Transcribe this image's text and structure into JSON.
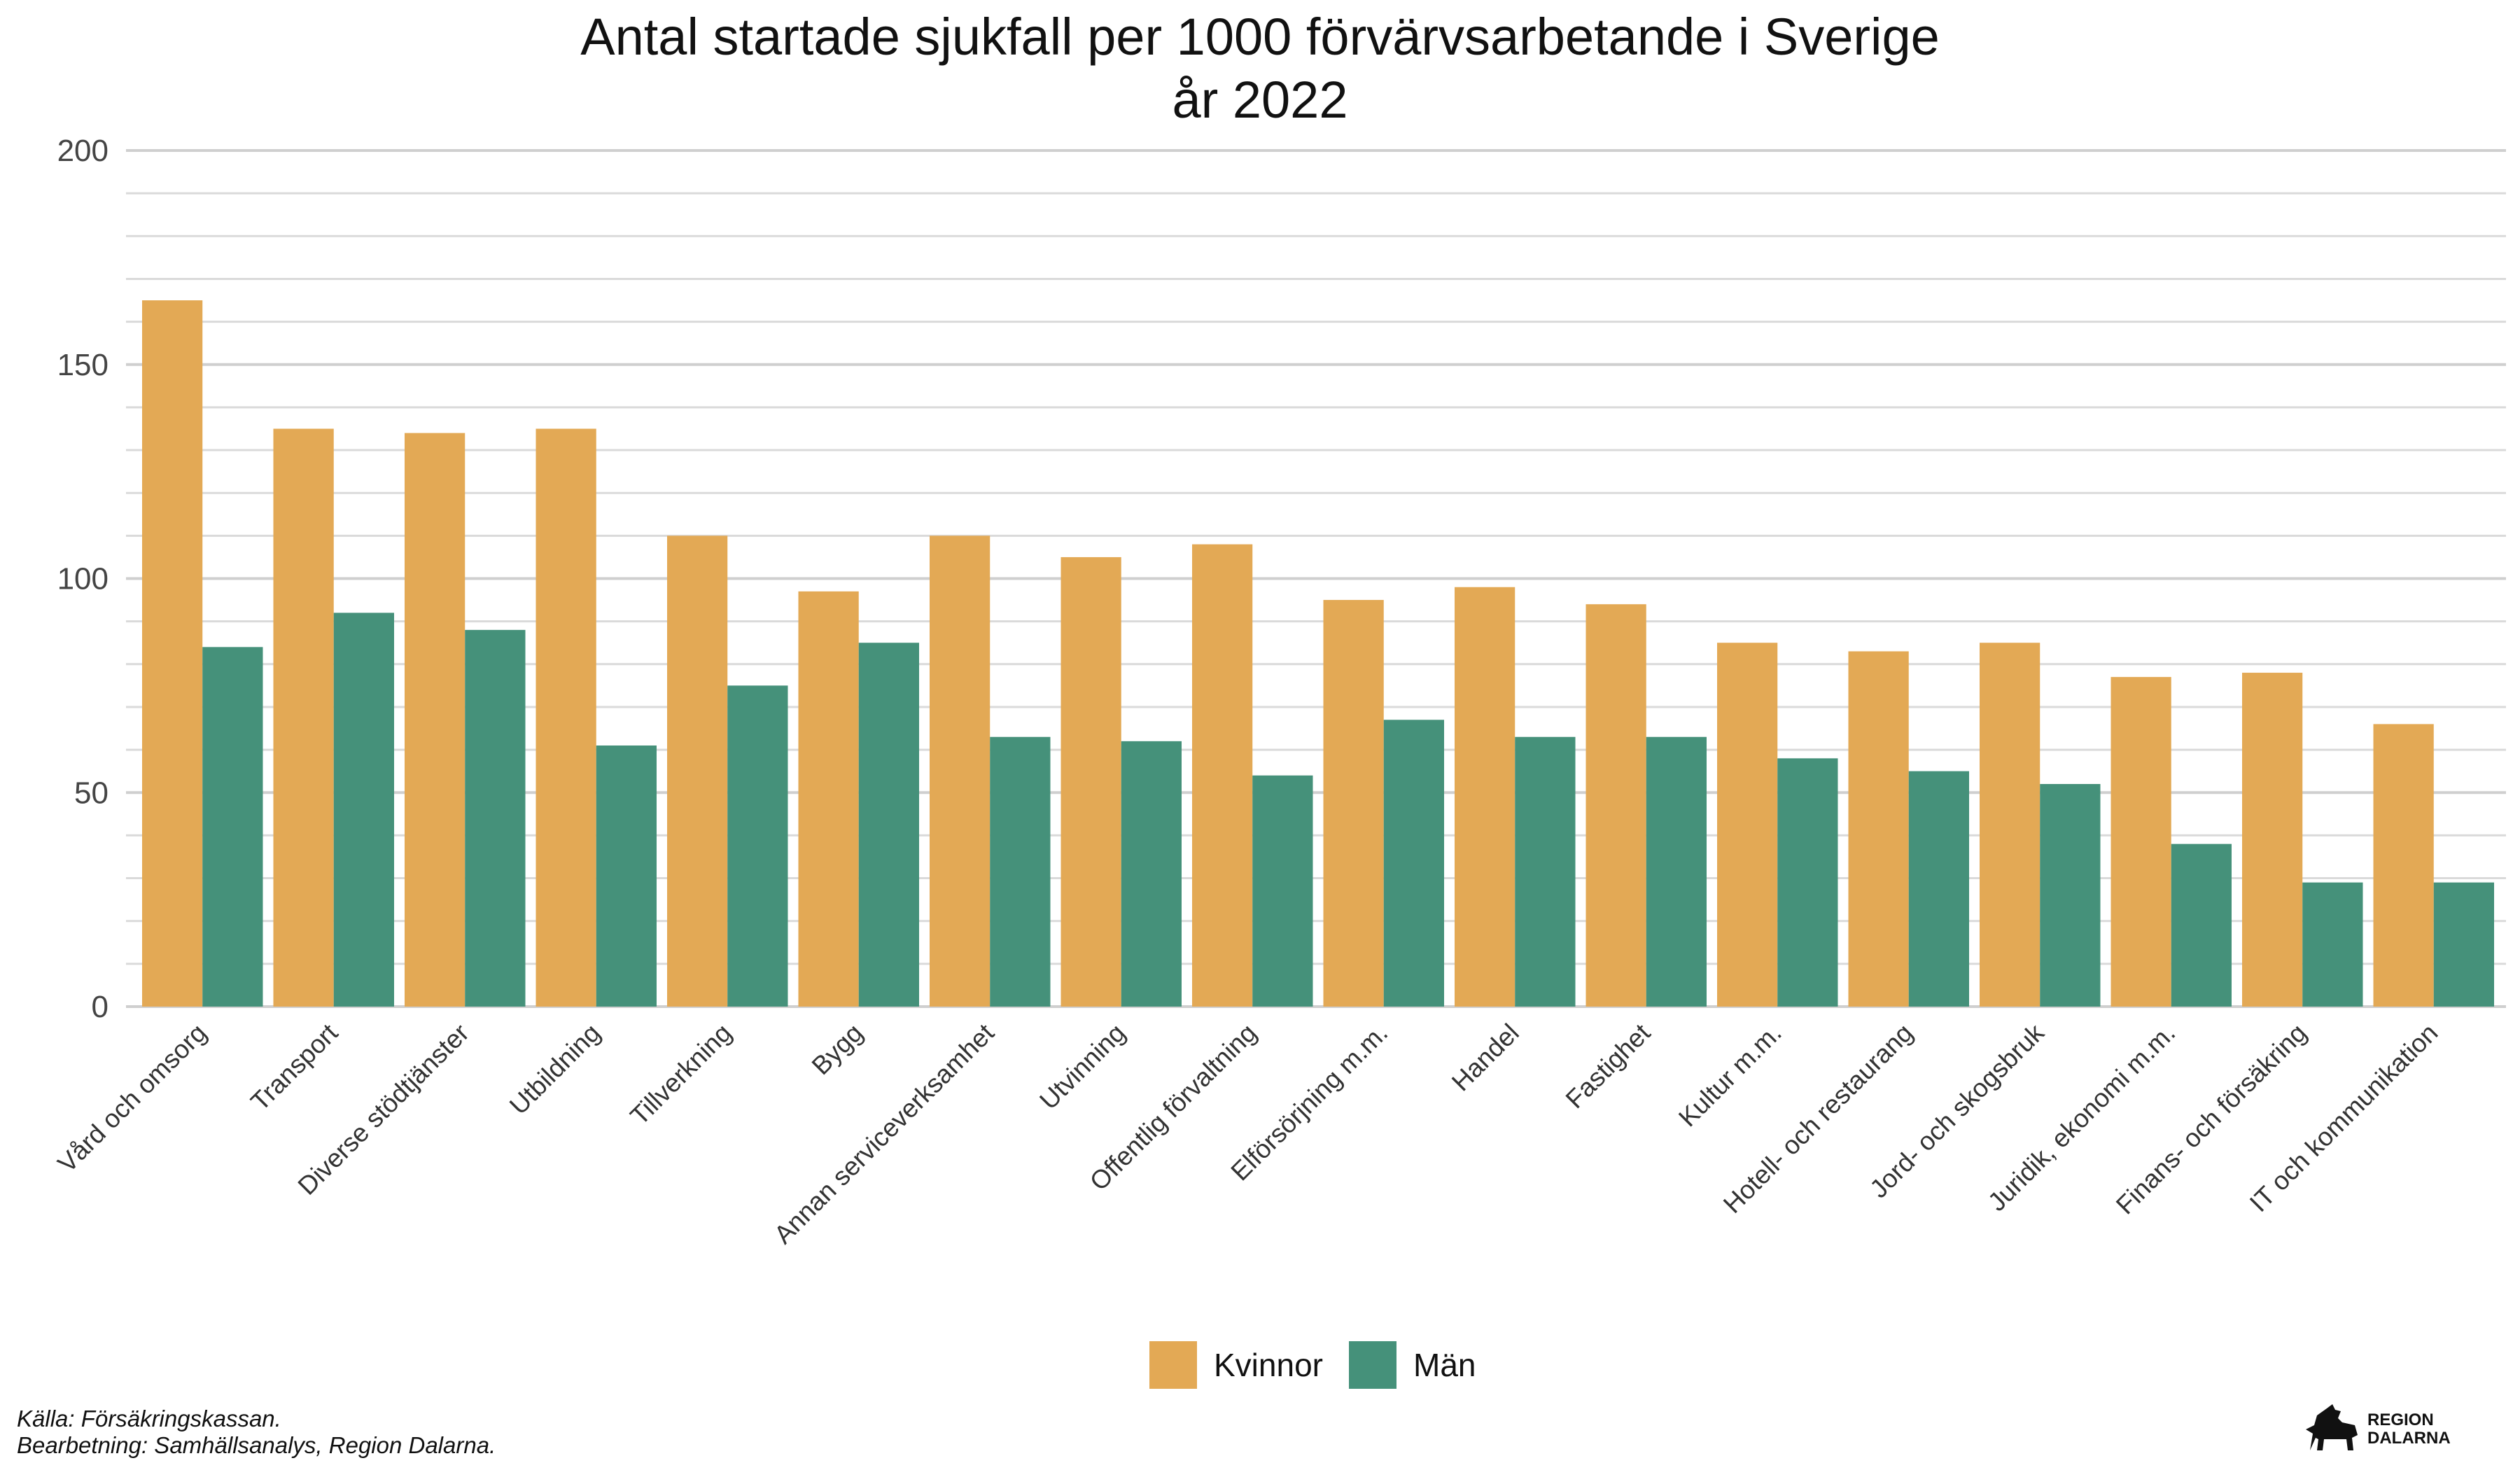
{
  "chart_data": {
    "type": "bar",
    "title": [
      "Antal startade sjukfall per 1000 förvärvsarbetande i Sverige",
      "år 2022"
    ],
    "xlabel": "",
    "ylabel": "",
    "ylim": [
      0,
      200
    ],
    "yticks": [
      0,
      50,
      100,
      150,
      200
    ],
    "grid": true,
    "legend_position": "bottom",
    "categories": [
      "Vård och omsorg",
      "Transport",
      "Diverse stödtjänster",
      "Utbildning",
      "Tillverkning",
      "Bygg",
      "Annan serviceverksamhet",
      "Utvinning",
      "Offentlig förvaltning",
      "Elförsörjning m.m.",
      "Handel",
      "Fastighet",
      "Kultur m.m.",
      "Hotell- och restaurang",
      "Jord- och skogsbruk",
      "Juridik, ekonomi m.m.",
      "Finans- och försäkring",
      "IT och kommunikation"
    ],
    "series": [
      {
        "name": "Kvinnor",
        "color": "#E3A955",
        "values": [
          165,
          135,
          134,
          135,
          110,
          97,
          110,
          105,
          108,
          95,
          98,
          94,
          85,
          83,
          85,
          77,
          78,
          66
        ]
      },
      {
        "name": "Män",
        "color": "#45917A",
        "values": [
          84,
          92,
          88,
          61,
          75,
          85,
          63,
          62,
          54,
          67,
          63,
          63,
          58,
          55,
          52,
          38,
          29,
          29
        ]
      }
    ]
  },
  "footer": {
    "source": "Källa: Försäkringskassan.",
    "processing": "Bearbetning: Samhällsanalys, Region Dalarna."
  },
  "logo": {
    "line1": "REGION",
    "line2": "DALARNA",
    "icon": "dala-horse-icon"
  }
}
